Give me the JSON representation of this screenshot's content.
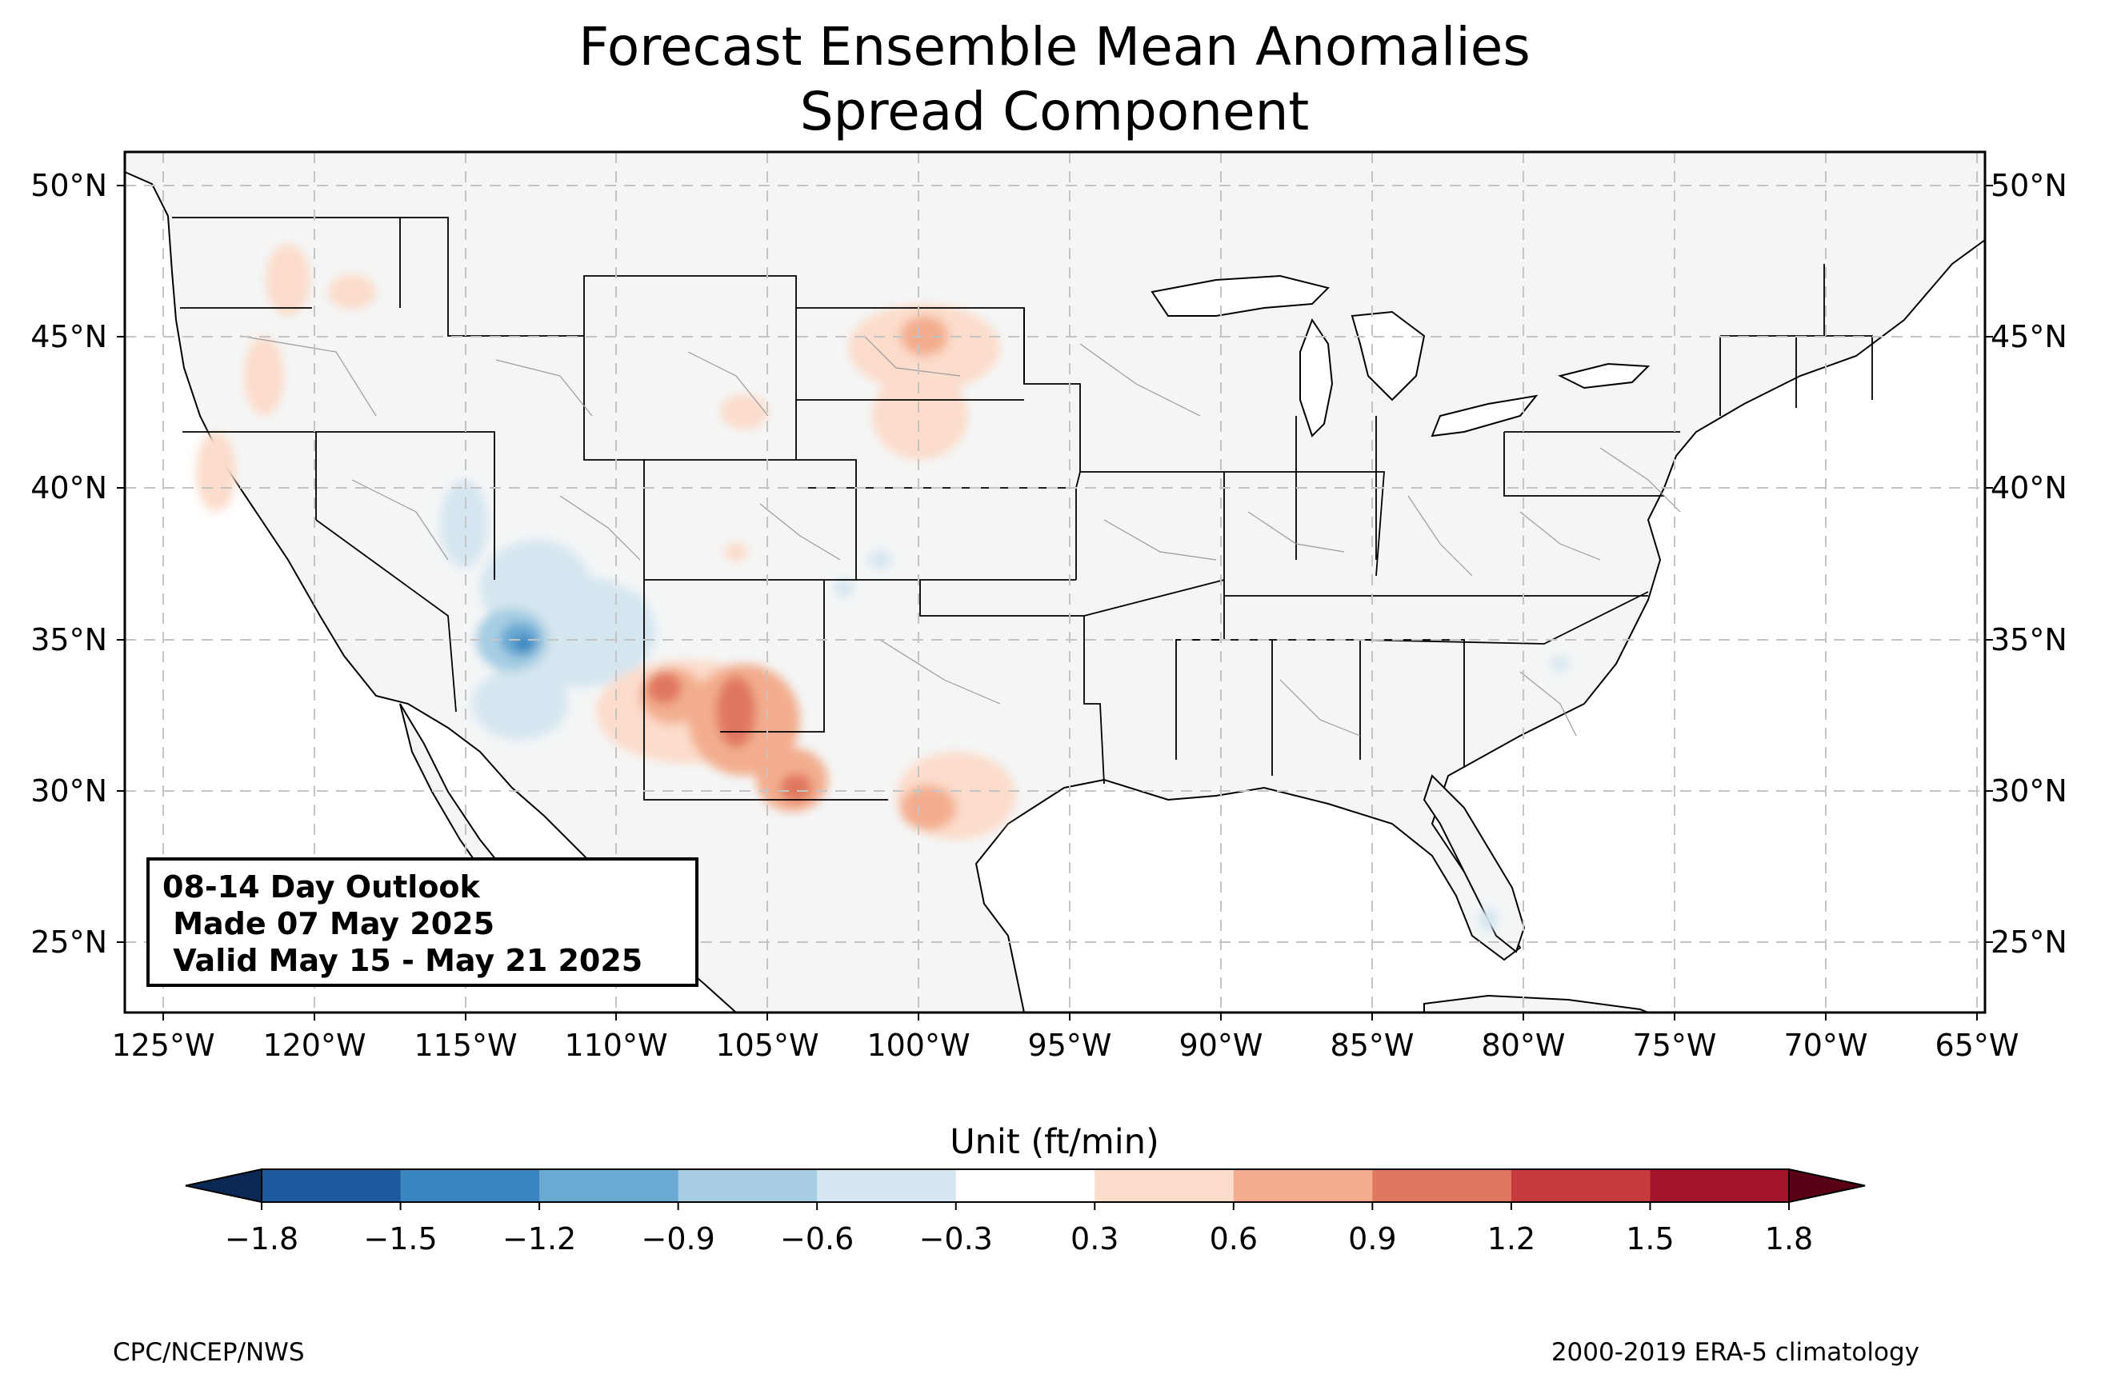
{
  "title": {
    "line1": "Forecast Ensemble Mean Anomalies",
    "line2": "Spread Component"
  },
  "outlook_box": {
    "line1": "08-14 Day Outlook",
    "line2": " Made 07 May 2025",
    "line3": " Valid May 15 - May 21 2025"
  },
  "lat_labels": [
    "50°N",
    "45°N",
    "40°N",
    "35°N",
    "30°N",
    "25°N"
  ],
  "lon_labels": [
    "125°W",
    "120°W",
    "115°W",
    "110°W",
    "105°W",
    "100°W",
    "95°W",
    "90°W",
    "85°W",
    "80°W",
    "75°W",
    "70°W",
    "65°W"
  ],
  "colorbar": {
    "title": "Unit (ft/min)",
    "ticks": [
      "−1.8",
      "−1.5",
      "−1.2",
      "−0.9",
      "−0.6",
      "−0.3",
      "0.3",
      "0.6",
      "0.9",
      "1.2",
      "1.5",
      "1.8"
    ],
    "colors": [
      "#1c5aa0",
      "#3a85c0",
      "#69a9d2",
      "#a6cde3",
      "#d5e6f0",
      "#ffffff",
      "#fcdccb",
      "#f3ad8e",
      "#e0785f",
      "#c63b3d",
      "#a3152a"
    ],
    "under_color": "#0a2a55",
    "over_color": "#5a0016"
  },
  "footer": {
    "left": "CPC/NCEP/NWS",
    "right": "2000-2019 ERA-5 climatology"
  },
  "map": {
    "ocean_color": "#ffffff",
    "land_color": "#f4f6f6",
    "grid": "dashed"
  }
}
